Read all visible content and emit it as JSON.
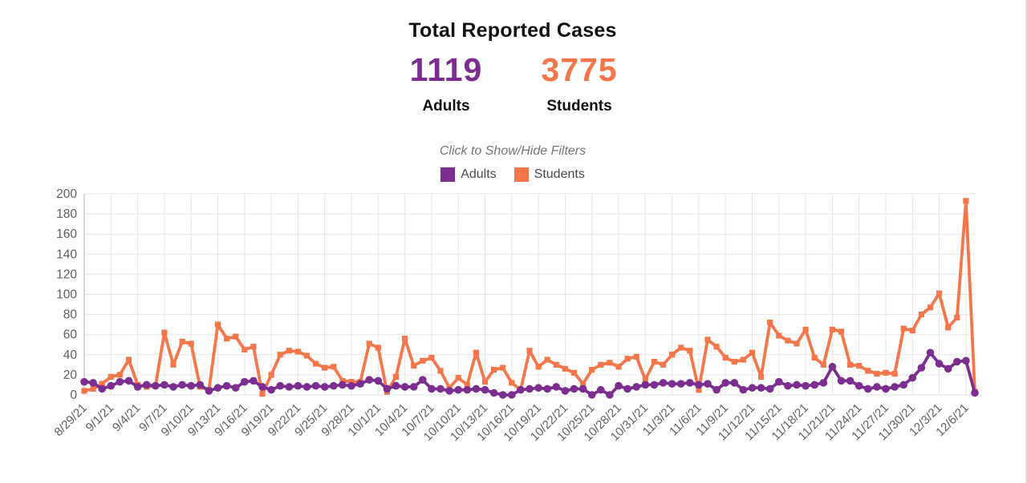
{
  "header": {
    "title": "Total Reported Cases",
    "totals": [
      {
        "value": "1119",
        "label": "Adults",
        "color": "#7b2e8f"
      },
      {
        "value": "3775",
        "label": "Students",
        "color": "#f4764a"
      }
    ]
  },
  "filters_toggle_label": "Click to Show/Hide Filters",
  "legend": [
    {
      "label": "Adults",
      "color": "#7b2e8f"
    },
    {
      "label": "Students",
      "color": "#f4764a"
    }
  ],
  "chart_data": {
    "type": "line",
    "title": "",
    "xlabel": "",
    "ylabel": "",
    "ylim": [
      0,
      200
    ],
    "ytick_step": 20,
    "grid": true,
    "legend_position": "top-center",
    "x_tick_every": 3,
    "x": [
      "8/29/21",
      "8/30/21",
      "8/31/21",
      "9/1/21",
      "9/2/21",
      "9/3/21",
      "9/4/21",
      "9/5/21",
      "9/6/21",
      "9/7/21",
      "9/8/21",
      "9/9/21",
      "9/10/21",
      "9/11/21",
      "9/12/21",
      "9/13/21",
      "9/14/21",
      "9/15/21",
      "9/16/21",
      "9/17/21",
      "9/18/21",
      "9/19/21",
      "9/20/21",
      "9/21/21",
      "9/22/21",
      "9/23/21",
      "9/24/21",
      "9/25/21",
      "9/26/21",
      "9/27/21",
      "9/28/21",
      "9/29/21",
      "9/30/21",
      "10/1/21",
      "10/2/21",
      "10/3/21",
      "10/4/21",
      "10/5/21",
      "10/6/21",
      "10/7/21",
      "10/8/21",
      "10/9/21",
      "10/10/21",
      "10/11/21",
      "10/12/21",
      "10/13/21",
      "10/14/21",
      "10/15/21",
      "10/16/21",
      "10/17/21",
      "10/18/21",
      "10/19/21",
      "10/20/21",
      "10/21/21",
      "10/22/21",
      "10/23/21",
      "10/24/21",
      "10/25/21",
      "10/26/21",
      "10/27/21",
      "10/28/21",
      "10/29/21",
      "10/30/21",
      "10/31/21",
      "11/1/21",
      "11/2/21",
      "11/3/21",
      "11/4/21",
      "11/5/21",
      "11/6/21",
      "11/7/21",
      "11/8/21",
      "11/9/21",
      "11/10/21",
      "11/11/21",
      "11/12/21",
      "11/13/21",
      "11/14/21",
      "11/15/21",
      "11/16/21",
      "11/17/21",
      "11/18/21",
      "11/19/21",
      "11/20/21",
      "11/21/21",
      "11/22/21",
      "11/23/21",
      "11/24/21",
      "11/25/21",
      "11/26/21",
      "11/27/21",
      "11/28/21",
      "11/29/21",
      "11/30/21",
      "12/1/21",
      "12/2/21",
      "12/3/21",
      "12/4/21",
      "12/5/21",
      "12/6/21",
      "12/7/21"
    ],
    "x_tick_labels": [
      "8/29/21",
      "9/1/21",
      "9/4/21",
      "9/7/21",
      "9/10/21",
      "9/13/21",
      "9/16/21",
      "9/19/21",
      "9/22/21",
      "9/25/21",
      "9/28/21",
      "10/1/21",
      "10/4/21",
      "10/7/21",
      "10/10/21",
      "10/13/21",
      "10/16/21",
      "10/19/21",
      "10/22/21",
      "10/25/21",
      "10/28/21",
      "10/31/21",
      "11/3/21",
      "11/6/21",
      "11/9/21",
      "11/12/21",
      "11/15/21",
      "11/18/21",
      "11/21/21",
      "11/24/21",
      "11/27/21",
      "11/30/21",
      "12/3/21",
      "12/6/21"
    ],
    "series": [
      {
        "name": "Students",
        "color": "#f4764a",
        "marker": "square",
        "values": [
          4,
          6,
          11,
          18,
          20,
          35,
          10,
          8,
          9,
          62,
          30,
          53,
          51,
          8,
          5,
          70,
          56,
          58,
          45,
          48,
          1,
          20,
          40,
          44,
          43,
          39,
          31,
          27,
          28,
          14,
          13,
          13,
          51,
          47,
          3,
          18,
          56,
          29,
          34,
          37,
          24,
          7,
          17,
          10,
          42,
          13,
          25,
          27,
          12,
          5,
          44,
          28,
          35,
          30,
          26,
          22,
          11,
          25,
          30,
          32,
          28,
          36,
          38,
          15,
          33,
          30,
          40,
          47,
          44,
          5,
          55,
          48,
          37,
          33,
          35,
          42,
          18,
          72,
          59,
          54,
          51,
          65,
          37,
          30,
          65,
          63,
          30,
          29,
          24,
          21,
          22,
          21,
          66,
          64,
          80,
          87,
          101,
          67,
          77,
          193,
          3
        ]
      },
      {
        "name": "Adults",
        "color": "#7b2e8f",
        "marker": "circle",
        "values": [
          13,
          12,
          6,
          9,
          13,
          14,
          8,
          10,
          9,
          10,
          8,
          10,
          9,
          10,
          4,
          7,
          9,
          7,
          13,
          14,
          8,
          5,
          9,
          8,
          9,
          8,
          9,
          8,
          9,
          10,
          9,
          11,
          15,
          14,
          6,
          9,
          8,
          8,
          15,
          6,
          6,
          4,
          5,
          5,
          6,
          5,
          2,
          0,
          0,
          5,
          6,
          7,
          6,
          8,
          4,
          6,
          6,
          0,
          5,
          0,
          9,
          6,
          8,
          10,
          10,
          12,
          11,
          11,
          12,
          10,
          11,
          5,
          12,
          12,
          5,
          7,
          7,
          6,
          13,
          9,
          10,
          9,
          10,
          12,
          28,
          14,
          14,
          9,
          6,
          8,
          6,
          8,
          10,
          17,
          27,
          42,
          31,
          26,
          33,
          34,
          2
        ]
      }
    ],
    "axis_color": "#cccccc",
    "gridline_color": "#e6e6e6",
    "tick_label_color": "#606060"
  }
}
